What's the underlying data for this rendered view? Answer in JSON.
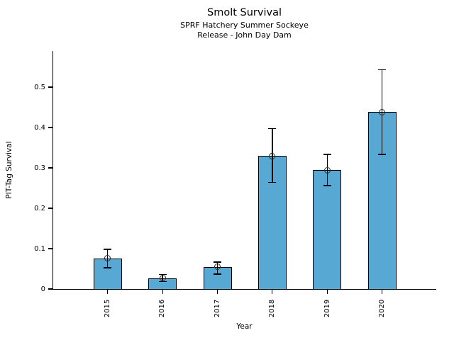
{
  "figure": {
    "title": "Smolt Survival",
    "subtitle_line1": "SPRF Hatchery Summer Sockeye",
    "subtitle_line2": "Release - John Day Dam"
  },
  "chart_data": {
    "type": "bar",
    "title": "Smolt Survival",
    "subtitle": [
      "SPRF Hatchery Summer Sockeye",
      "Release - John Day Dam"
    ],
    "xlabel": "Year",
    "ylabel": "PIT-Tag Survival",
    "categories": [
      "2015",
      "2016",
      "2017",
      "2018",
      "2019",
      "2020"
    ],
    "values": [
      0.076,
      0.027,
      0.055,
      0.329,
      0.294,
      0.438
    ],
    "error_low": [
      0.053,
      0.018,
      0.037,
      0.264,
      0.256,
      0.333
    ],
    "error_high": [
      0.098,
      0.036,
      0.067,
      0.397,
      0.333,
      0.543
    ],
    "ylim": [
      0,
      0.59
    ],
    "yticks": [
      0,
      0.1,
      0.2,
      0.3,
      0.4,
      0.5
    ],
    "ytick_labels": [
      "0",
      "0.1",
      "0.2",
      "0.3",
      "0.4",
      "0.5"
    ],
    "bar_color": "#57A9D4",
    "bar_edge_color": "#000000",
    "error_color": "#000000",
    "marker": "open-circle",
    "x_tick_rotation_deg": 90,
    "grid": false,
    "legend": false
  }
}
